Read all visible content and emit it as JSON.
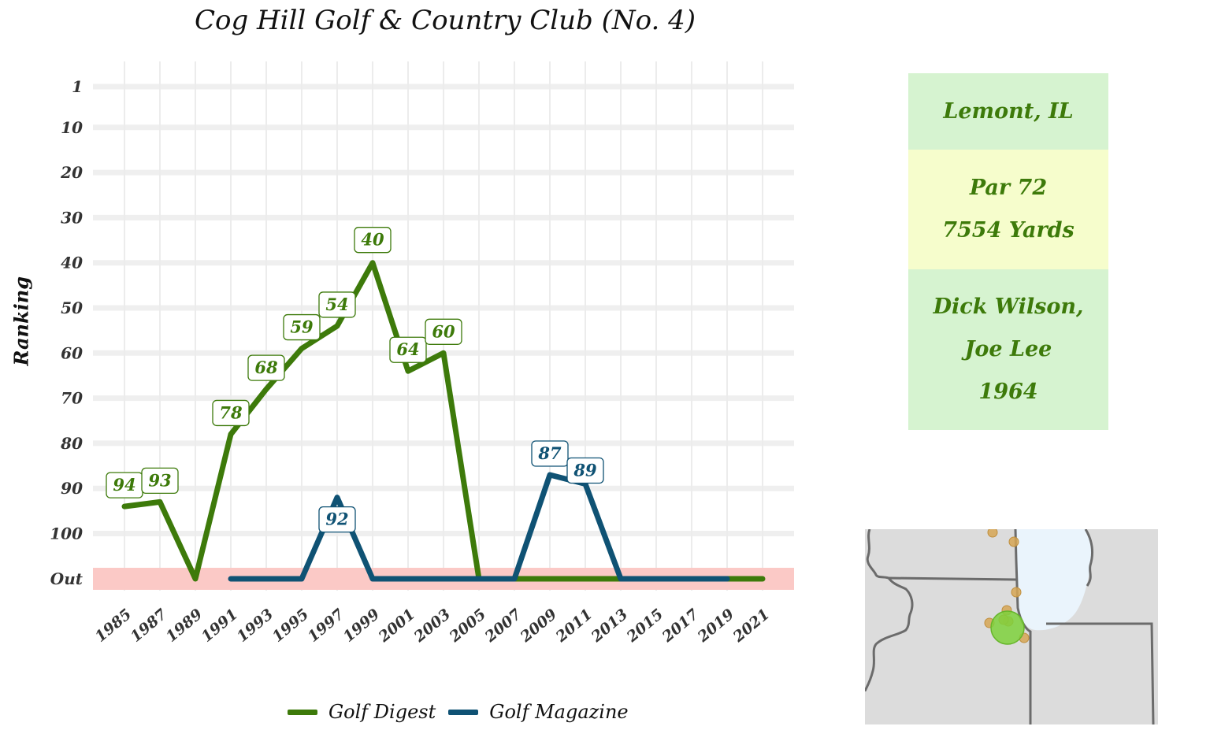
{
  "chart_data": {
    "type": "line",
    "title": "Cog Hill Golf & Country Club (No. 4)",
    "ylabel": "Ranking",
    "xlabel": "",
    "x_ticks": [
      "1985",
      "1987",
      "1989",
      "1991",
      "1993",
      "1995",
      "1997",
      "1999",
      "2001",
      "2003",
      "2005",
      "2007",
      "2009",
      "2011",
      "2013",
      "2015",
      "2017",
      "2019",
      "2021"
    ],
    "y_ticks": [
      "1",
      "10",
      "20",
      "30",
      "40",
      "50",
      "60",
      "70",
      "80",
      "90",
      "100",
      "Out"
    ],
    "y_reversed": true,
    "out_band_color": "#fbc9c6",
    "grid": true,
    "legend_position": "bottom",
    "series": [
      {
        "name": "Golf Digest",
        "color": "#3d7a0a",
        "points": [
          {
            "x": 1985,
            "y": 94
          },
          {
            "x": 1987,
            "y": 93
          },
          {
            "x": 1989,
            "y": "Out"
          },
          {
            "x": 1991,
            "y": 78
          },
          {
            "x": 1993,
            "y": 68
          },
          {
            "x": 1995,
            "y": 59
          },
          {
            "x": 1997,
            "y": 54
          },
          {
            "x": 1999,
            "y": 40
          },
          {
            "x": 2001,
            "y": 64
          },
          {
            "x": 2003,
            "y": 60
          },
          {
            "x": 2005,
            "y": "Out"
          },
          {
            "x": 2007,
            "y": "Out"
          },
          {
            "x": 2009,
            "y": "Out"
          },
          {
            "x": 2011,
            "y": "Out"
          },
          {
            "x": 2013,
            "y": "Out"
          },
          {
            "x": 2015,
            "y": "Out"
          },
          {
            "x": 2017,
            "y": "Out"
          },
          {
            "x": 2019,
            "y": "Out"
          },
          {
            "x": 2021,
            "y": "Out"
          }
        ]
      },
      {
        "name": "Golf Magazine",
        "color": "#0f5274",
        "points": [
          {
            "x": 1991,
            "y": "Out"
          },
          {
            "x": 1993,
            "y": "Out"
          },
          {
            "x": 1995,
            "y": "Out"
          },
          {
            "x": 1997,
            "y": 92
          },
          {
            "x": 1999,
            "y": "Out"
          },
          {
            "x": 2001,
            "y": "Out"
          },
          {
            "x": 2003,
            "y": "Out"
          },
          {
            "x": 2005,
            "y": "Out"
          },
          {
            "x": 2007,
            "y": "Out"
          },
          {
            "x": 2009,
            "y": 87
          },
          {
            "x": 2011,
            "y": 89
          },
          {
            "x": 2013,
            "y": "Out"
          },
          {
            "x": 2015,
            "y": "Out"
          },
          {
            "x": 2017,
            "y": "Out"
          },
          {
            "x": 2019,
            "y": "Out"
          }
        ]
      }
    ]
  },
  "info": {
    "location": "Lemont, IL",
    "par": "Par 72",
    "yards": "7554 Yards",
    "architect_1": "Dick Wilson,",
    "architect_2": "Joe Lee",
    "year": "1964",
    "colors": {
      "location_bg": "#d6f3d0",
      "course_bg": "#f6fdcc",
      "architect_bg": "#d6f3d0",
      "text": "#3d7a0a"
    }
  },
  "legend": {
    "digest_label": "Golf Digest",
    "magazine_label": "Golf Magazine"
  },
  "map": {
    "land_color": "#dcdcdc",
    "lake_color": "#eaf4fc",
    "border_color": "#6b6b6b",
    "highlight_color": "#7ed13c",
    "other_color": "#d6a655"
  }
}
